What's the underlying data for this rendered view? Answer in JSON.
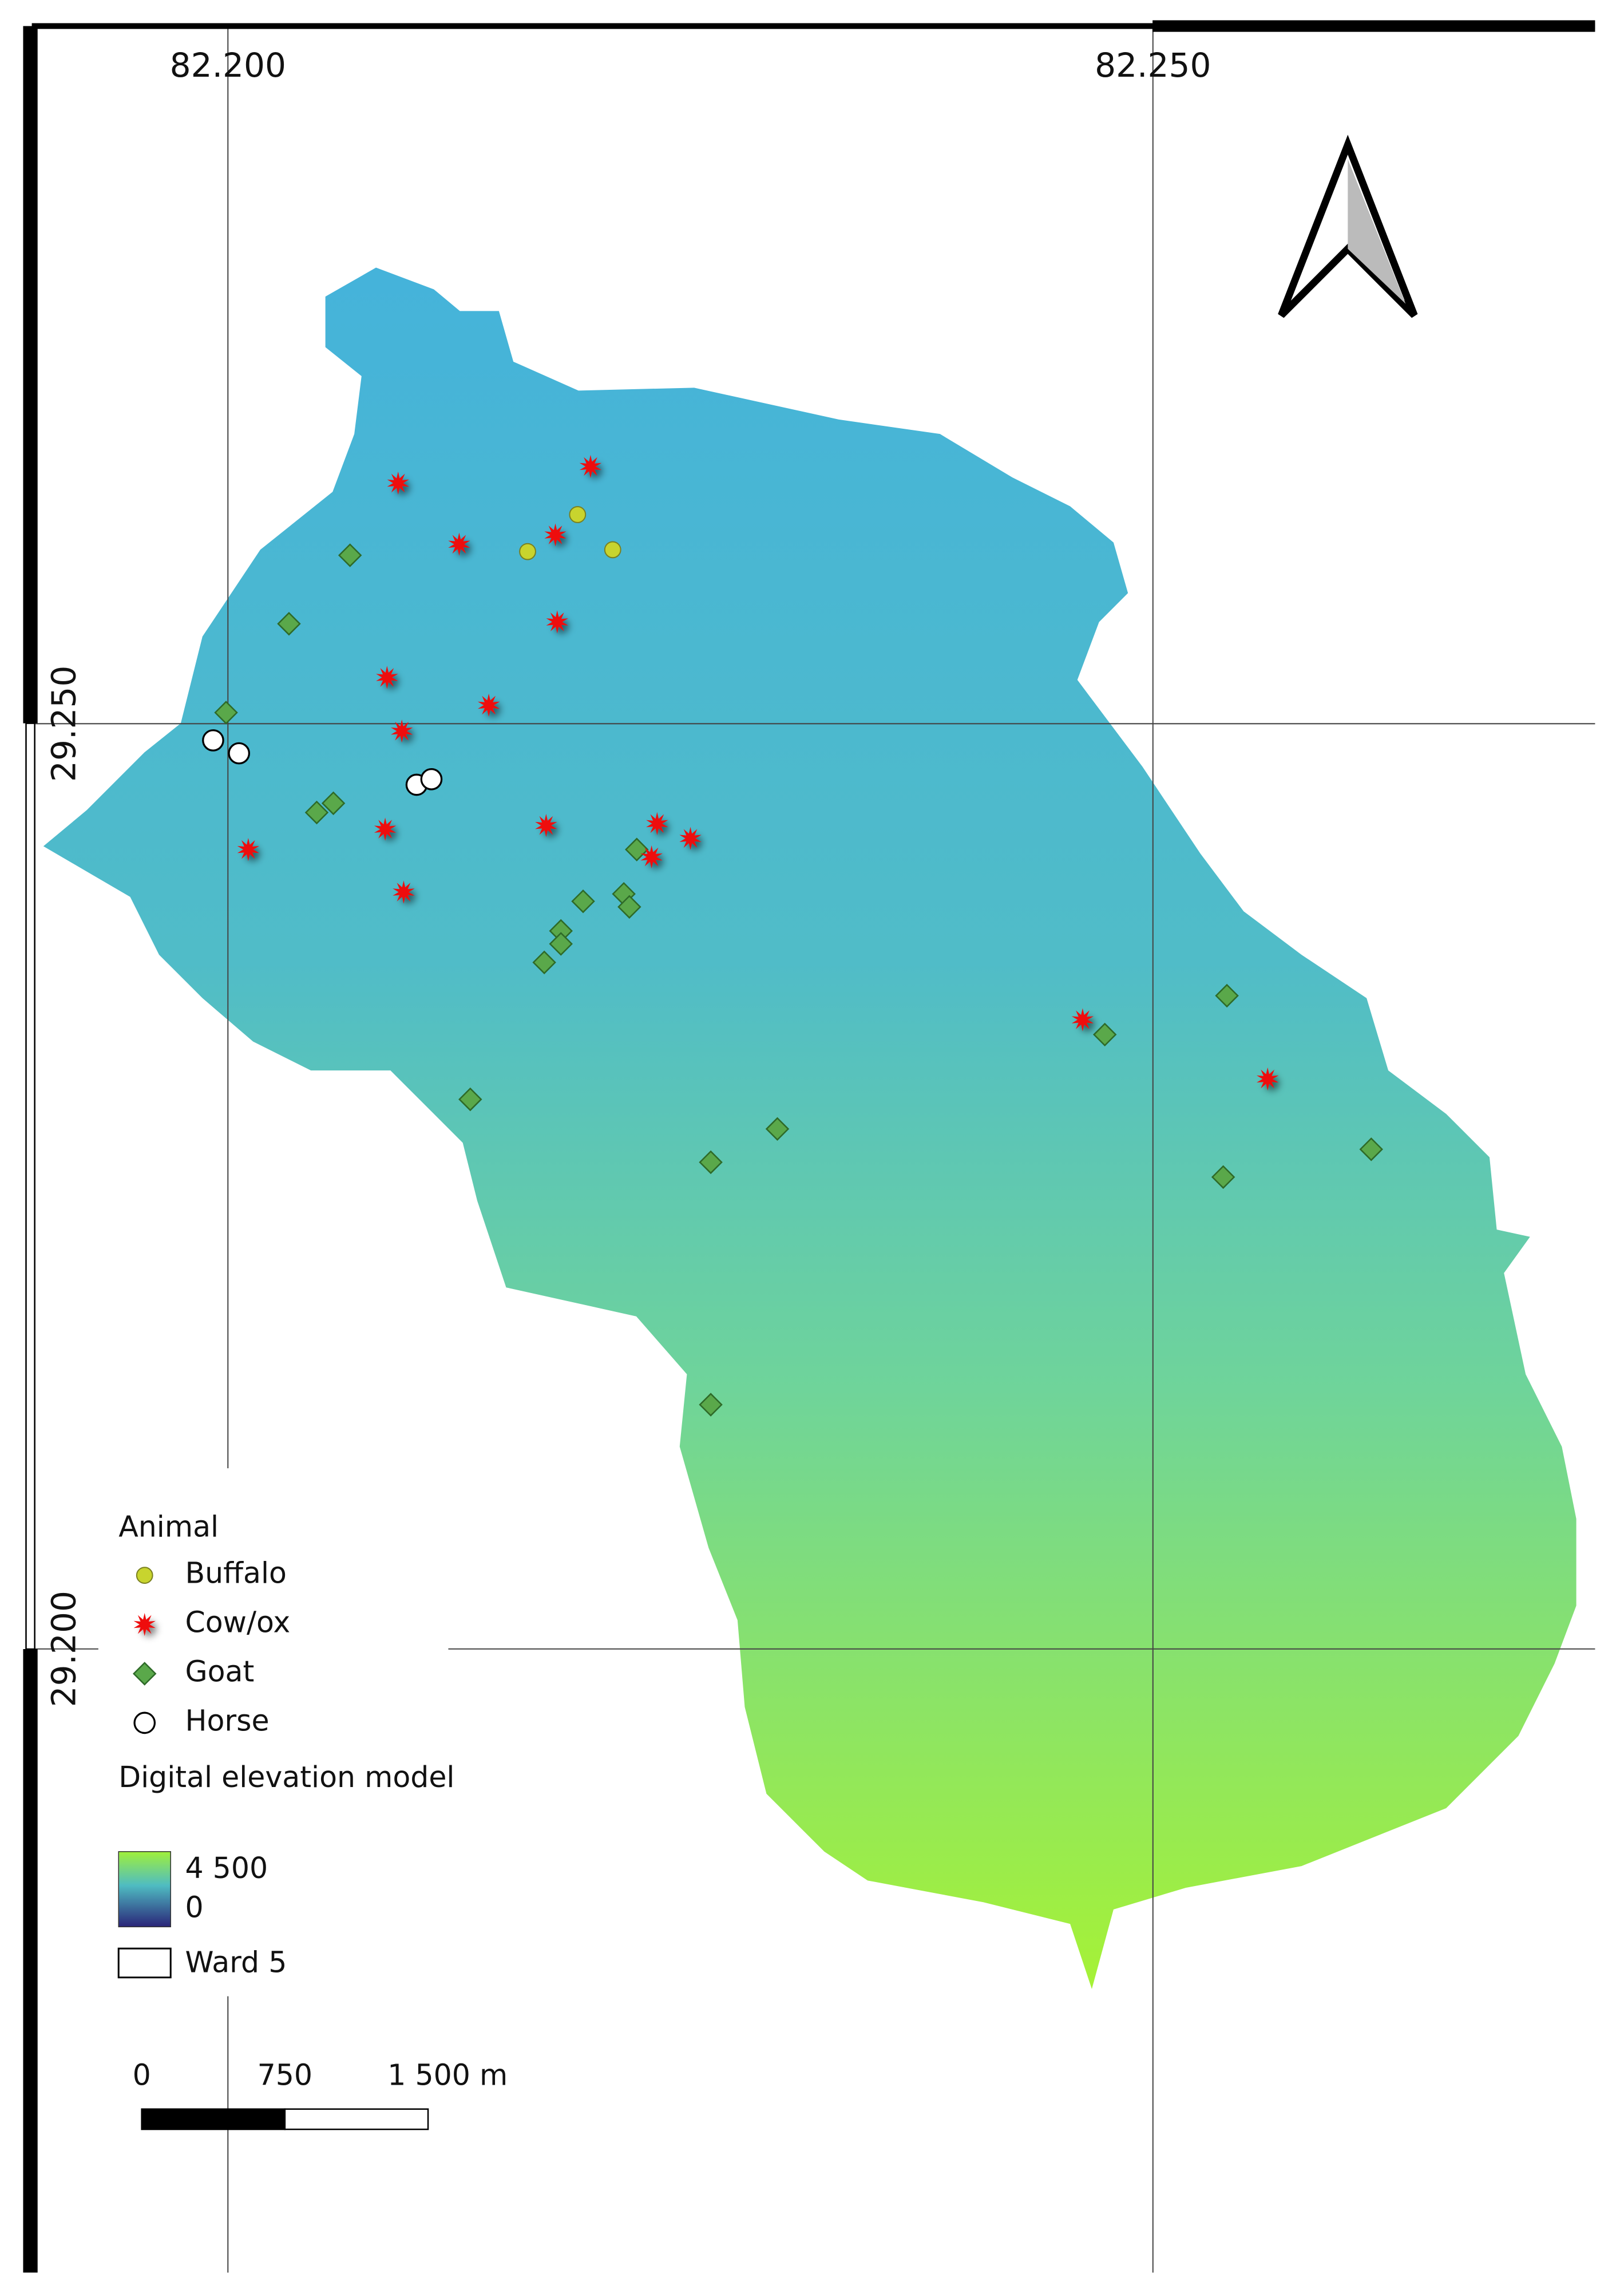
{
  "map": {
    "xlim": [
      82.1894,
      82.2739
    ],
    "ylim": [
      29.1663,
      29.2877
    ],
    "lon_ticks": [
      {
        "value": 82.2,
        "label": "82.200"
      },
      {
        "value": 82.25,
        "label": "82.250"
      }
    ],
    "lat_ticks": [
      {
        "value": 29.25,
        "label": "29.250"
      },
      {
        "value": 29.2,
        "label": "29.200"
      }
    ],
    "legend": {
      "title": "Animal",
      "layers": [
        {
          "name": "Buffalo",
          "marker": "circle",
          "color": "#c8d42e",
          "lon": [
            82.2189,
            82.2162,
            82.2208
          ],
          "lat": [
            29.2613,
            29.2593,
            29.2594
          ]
        },
        {
          "name": "Cow/ox",
          "marker": "star",
          "color": "#ee1111",
          "lon": [
            82.2092,
            82.2196,
            82.2125,
            82.2177,
            82.2178,
            82.2086,
            82.2141,
            82.2094,
            82.2011,
            82.2085,
            82.2172,
            82.2232,
            82.2229,
            82.225,
            82.2095,
            82.2462,
            82.2562
          ],
          "lat": [
            29.263,
            29.2639,
            29.2597,
            29.2602,
            29.2555,
            29.2525,
            29.251,
            29.2496,
            29.2432,
            29.2443,
            29.2445,
            29.2446,
            29.2428,
            29.2438,
            29.2409,
            29.234,
            29.2308
          ]
        },
        {
          "name": "Goat",
          "marker": "diamond",
          "color": "#5aa84a",
          "lon": [
            82.2066,
            82.2033,
            82.1999,
            82.2048,
            82.2057,
            82.2221,
            82.2192,
            82.2214,
            82.2217,
            82.218,
            82.218,
            82.2171,
            82.2131,
            82.2297,
            82.2261,
            82.2474,
            82.254,
            82.2538,
            82.2618,
            82.2261
          ],
          "lat": [
            29.2591,
            29.2554,
            29.2506,
            29.2452,
            29.2457,
            29.2432,
            29.2404,
            29.2408,
            29.2401,
            29.2388,
            29.2381,
            29.2371,
            29.2297,
            29.2281,
            29.2263,
            29.2332,
            29.2353,
            29.2255,
            29.227,
            29.2132
          ]
        },
        {
          "name": "Horse",
          "marker": "ring",
          "color": "#ffffff",
          "lon": [
            82.1992,
            82.2006,
            82.2102,
            82.211
          ],
          "lat": [
            29.2491,
            29.2484,
            29.2467,
            29.247
          ]
        }
      ]
    },
    "dem": {
      "title": "Digital elevation model",
      "ticks": [
        {
          "value": 4500,
          "label": "4 500"
        },
        0
      ]
    },
    "boundary": {
      "name": "Ward 5"
    },
    "scale_bar": {
      "ticks": [
        0,
        750,
        {
          "value": 1500,
          "label": "1 500 m"
        }
      ]
    }
  }
}
